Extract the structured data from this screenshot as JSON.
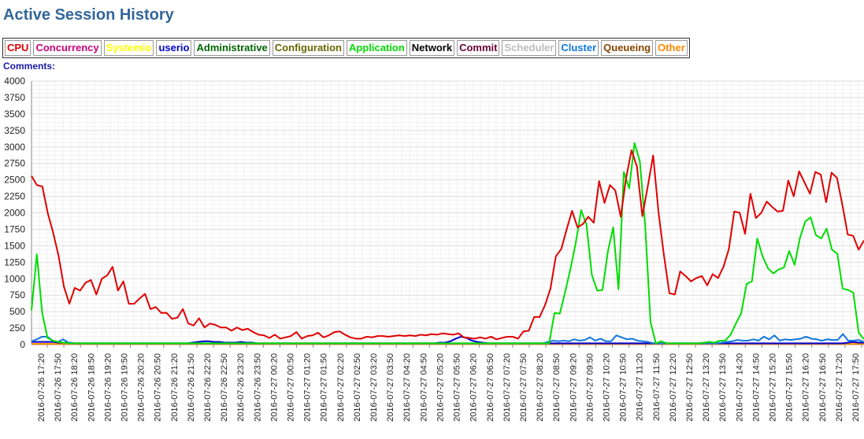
{
  "page": {
    "title": "Active Session History"
  },
  "legend": {
    "items": [
      {
        "label": "CPU",
        "color": "#e00000"
      },
      {
        "label": "Concurrency",
        "color": "#cc0077"
      },
      {
        "label": "Systemio",
        "color": "#ffff00"
      },
      {
        "label": "userio",
        "color": "#0000cc"
      },
      {
        "label": "Administrative",
        "color": "#006600"
      },
      {
        "label": "Configuration",
        "color": "#666600"
      },
      {
        "label": "Application",
        "color": "#00dd00"
      },
      {
        "label": "Network",
        "color": "#000000"
      },
      {
        "label": "Commit",
        "color": "#660033"
      },
      {
        "label": "Scheduler",
        "color": "#bbbbbb"
      },
      {
        "label": "Cluster",
        "color": "#1177dd"
      },
      {
        "label": "Queueing",
        "color": "#884400"
      },
      {
        "label": "Other",
        "color": "#ff8800"
      }
    ]
  },
  "comments": {
    "label": "Comments:"
  },
  "chart_data": {
    "type": "line",
    "ylim": [
      0,
      4000
    ],
    "yticks": [
      0,
      250,
      500,
      750,
      1000,
      1250,
      1500,
      1750,
      2000,
      2250,
      2500,
      2750,
      3000,
      3250,
      3500,
      3750,
      4000
    ],
    "x_tick_labels": [
      "2016-07-26 17:20",
      "2016-07-26 17:50",
      "2016-07-26 18:20",
      "2016-07-26 18:50",
      "2016-07-26 19:20",
      "2016-07-26 19:50",
      "2016-07-26 20:20",
      "2016-07-26 20:50",
      "2016-07-26 21:20",
      "2016-07-26 21:50",
      "2016-07-26 22:20",
      "2016-07-26 22:50",
      "2016-07-26 23:20",
      "2016-07-26 23:50",
      "2016-07-27 00:20",
      "2016-07-27 00:50",
      "2016-07-27 01:20",
      "2016-07-27 01:50",
      "2016-07-27 02:20",
      "2016-07-27 02:50",
      "2016-07-27 03:20",
      "2016-07-27 03:50",
      "2016-07-27 04:20",
      "2016-07-27 04:50",
      "2016-07-27 05:20",
      "2016-07-27 05:50",
      "2016-07-27 06:20",
      "2016-07-27 06:50",
      "2016-07-27 07:20",
      "2016-07-27 07:50",
      "2016-07-27 08:20",
      "2016-07-27 08:50",
      "2016-07-27 09:20",
      "2016-07-27 09:50",
      "2016-07-27 10:20",
      "2016-07-27 10:50",
      "2016-07-27 11:20",
      "2016-07-27 11:50",
      "2016-07-27 12:20",
      "2016-07-27 12:50",
      "2016-07-27 13:20",
      "2016-07-27 13:50",
      "2016-07-27 14:20",
      "2016-07-27 14:50",
      "2016-07-27 15:20",
      "2016-07-27 15:50",
      "2016-07-27 16:20",
      "2016-07-27 16:50",
      "2016-07-27 17:20",
      "2016-07-27 17:50"
    ],
    "grid": true,
    "series": [
      {
        "name": "CPU",
        "color": "#e00000",
        "values": [
          2560,
          2420,
          2400,
          2000,
          1700,
          1350,
          880,
          620,
          860,
          820,
          940,
          980,
          760,
          1000,
          1050,
          1180,
          820,
          960,
          620,
          620,
          700,
          770,
          540,
          570,
          480,
          480,
          390,
          410,
          540,
          320,
          290,
          400,
          260,
          320,
          300,
          260,
          260,
          210,
          260,
          220,
          240,
          190,
          150,
          140,
          100,
          150,
          90,
          110,
          130,
          190,
          90,
          130,
          140,
          180,
          110,
          140,
          190,
          200,
          150,
          110,
          90,
          90,
          120,
          110,
          130,
          130,
          120,
          130,
          140,
          130,
          140,
          130,
          150,
          140,
          160,
          150,
          170,
          160,
          150,
          170,
          110,
          100,
          90,
          110,
          90,
          120,
          80,
          100,
          120,
          120,
          90,
          200,
          210,
          420,
          420,
          600,
          850,
          1340,
          1450,
          1750,
          2030,
          1780,
          1830,
          1940,
          1850,
          2480,
          2150,
          2420,
          2340,
          1940,
          2530,
          2950,
          2700,
          1950,
          2400,
          2870,
          2000,
          1350,
          780,
          760,
          1110,
          1040,
          960,
          1010,
          1040,
          900,
          1070,
          1010,
          1180,
          1450,
          2020,
          2000,
          1680,
          2290,
          1920,
          2000,
          2170,
          2090,
          2020,
          2030,
          2490,
          2250,
          2630,
          2460,
          2290,
          2620,
          2580,
          2160,
          2610,
          2530,
          2120,
          1670,
          1650,
          1440,
          1580
        ]
      },
      {
        "name": "Application",
        "color": "#00dd00",
        "values": [
          520,
          1370,
          480,
          100,
          60,
          40,
          30,
          20,
          20,
          20,
          20,
          20,
          20,
          20,
          20,
          20,
          20,
          20,
          20,
          20,
          20,
          20,
          20,
          20,
          20,
          20,
          20,
          20,
          20,
          20,
          20,
          20,
          20,
          20,
          20,
          20,
          20,
          20,
          20,
          20,
          20,
          20,
          20,
          20,
          20,
          20,
          20,
          20,
          20,
          20,
          20,
          20,
          20,
          20,
          20,
          20,
          20,
          20,
          20,
          20,
          20,
          20,
          20,
          20,
          20,
          20,
          20,
          20,
          20,
          20,
          20,
          20,
          20,
          20,
          20,
          20,
          20,
          20,
          20,
          20,
          20,
          20,
          20,
          20,
          20,
          20,
          20,
          20,
          20,
          20,
          20,
          20,
          20,
          20,
          20,
          20,
          20,
          20,
          480,
          470,
          800,
          1150,
          1550,
          2040,
          1820,
          1060,
          820,
          830,
          1410,
          1780,
          840,
          2620,
          2370,
          3060,
          2780,
          1800,
          340,
          20,
          50,
          20,
          20,
          20,
          20,
          20,
          20,
          20,
          30,
          40,
          30,
          60,
          60,
          150,
          320,
          480,
          920,
          960,
          1610,
          1340,
          1160,
          1080,
          1140,
          1170,
          1420,
          1210,
          1620,
          1870,
          1930,
          1660,
          1610,
          1760,
          1440,
          1380,
          850,
          830,
          790,
          180,
          80
        ]
      },
      {
        "name": "Cluster",
        "color": "#1177dd",
        "values": [
          50,
          80,
          120,
          120,
          60,
          40,
          80,
          30,
          20,
          20,
          20,
          20,
          20,
          20,
          20,
          20,
          20,
          20,
          20,
          20,
          20,
          20,
          20,
          20,
          20,
          20,
          20,
          20,
          20,
          20,
          20,
          20,
          20,
          20,
          20,
          20,
          20,
          20,
          20,
          20,
          20,
          20,
          20,
          20,
          20,
          20,
          20,
          20,
          20,
          20,
          20,
          20,
          20,
          20,
          20,
          20,
          20,
          20,
          20,
          20,
          20,
          20,
          20,
          20,
          20,
          20,
          20,
          20,
          20,
          20,
          20,
          20,
          20,
          20,
          20,
          20,
          20,
          20,
          20,
          20,
          20,
          20,
          20,
          20,
          20,
          20,
          20,
          20,
          20,
          20,
          20,
          20,
          20,
          20,
          20,
          20,
          20,
          20,
          40,
          60,
          50,
          60,
          50,
          80,
          60,
          70,
          110,
          60,
          90,
          50,
          50,
          140,
          110,
          80,
          90,
          60,
          50,
          40,
          20,
          20,
          20,
          20,
          20,
          20,
          20,
          20,
          20,
          20,
          20,
          20,
          20,
          30,
          40,
          50,
          70,
          60,
          60,
          80,
          60,
          120,
          80,
          140,
          60,
          80,
          70,
          80,
          90,
          120,
          90,
          80,
          60,
          80,
          70,
          70,
          160,
          60,
          60,
          70,
          40
        ]
      },
      {
        "name": "userio",
        "color": "#0000cc",
        "values": [
          40,
          40,
          40,
          40,
          40,
          30,
          30,
          30,
          20,
          20,
          20,
          20,
          20,
          20,
          20,
          20,
          20,
          20,
          20,
          20,
          20,
          20,
          20,
          20,
          20,
          20,
          20,
          20,
          20,
          20,
          30,
          40,
          50,
          50,
          40,
          40,
          30,
          30,
          30,
          40,
          30,
          30,
          20,
          20,
          20,
          20,
          20,
          20,
          20,
          20,
          20,
          20,
          20,
          20,
          20,
          20,
          20,
          20,
          20,
          20,
          20,
          20,
          20,
          20,
          20,
          20,
          20,
          20,
          20,
          20,
          20,
          20,
          20,
          20,
          20,
          20,
          30,
          30,
          50,
          90,
          120,
          100,
          60,
          40,
          30,
          20,
          20,
          20,
          20,
          20,
          20,
          20,
          20,
          20,
          20,
          20,
          20,
          20,
          20,
          20,
          20,
          20,
          20,
          20,
          20,
          20,
          20,
          20,
          20,
          20,
          20,
          20,
          20,
          20,
          20,
          20,
          20,
          20,
          20,
          20,
          20,
          20,
          20,
          20,
          20,
          20,
          20,
          20,
          20,
          20,
          20,
          20,
          20,
          20,
          20,
          20,
          20,
          20,
          20,
          20,
          20,
          20,
          20,
          20,
          20,
          20,
          20,
          20,
          20,
          20,
          20,
          20,
          30,
          40,
          30,
          30
        ]
      },
      {
        "name": "Other",
        "color": "#ff8800",
        "values": [
          10,
          10,
          10,
          10,
          10,
          10,
          10,
          10,
          10,
          10,
          10,
          10,
          10,
          10,
          10,
          10,
          10,
          10,
          10,
          10,
          10,
          10,
          10,
          10,
          10,
          10,
          10,
          10,
          10,
          10,
          10,
          10,
          10,
          10,
          10,
          10,
          10,
          10,
          10,
          10,
          10,
          10,
          10,
          10,
          10,
          10,
          10,
          10,
          10,
          10,
          10,
          10,
          10,
          10,
          10,
          10,
          10,
          10,
          10,
          10,
          10,
          10,
          10,
          10,
          10,
          10,
          10,
          10,
          10,
          10,
          10,
          10,
          10,
          10,
          10,
          10,
          10,
          10,
          10,
          10,
          10,
          10,
          10,
          10,
          10,
          10,
          10,
          10,
          10,
          10,
          10,
          10,
          10,
          10,
          10,
          10,
          10,
          10,
          10,
          10,
          10,
          10,
          10,
          10,
          10,
          10,
          10,
          10,
          10,
          10,
          10,
          10,
          10,
          10,
          10,
          10,
          10,
          10,
          10,
          10,
          10,
          10,
          10,
          10,
          10,
          10,
          10,
          10,
          10,
          10,
          10,
          10,
          10,
          10,
          10,
          10,
          10,
          10,
          10,
          10,
          10,
          10,
          10,
          10,
          10,
          10,
          10,
          10,
          10,
          10,
          10,
          10,
          10,
          10,
          10,
          10
        ]
      }
    ]
  }
}
